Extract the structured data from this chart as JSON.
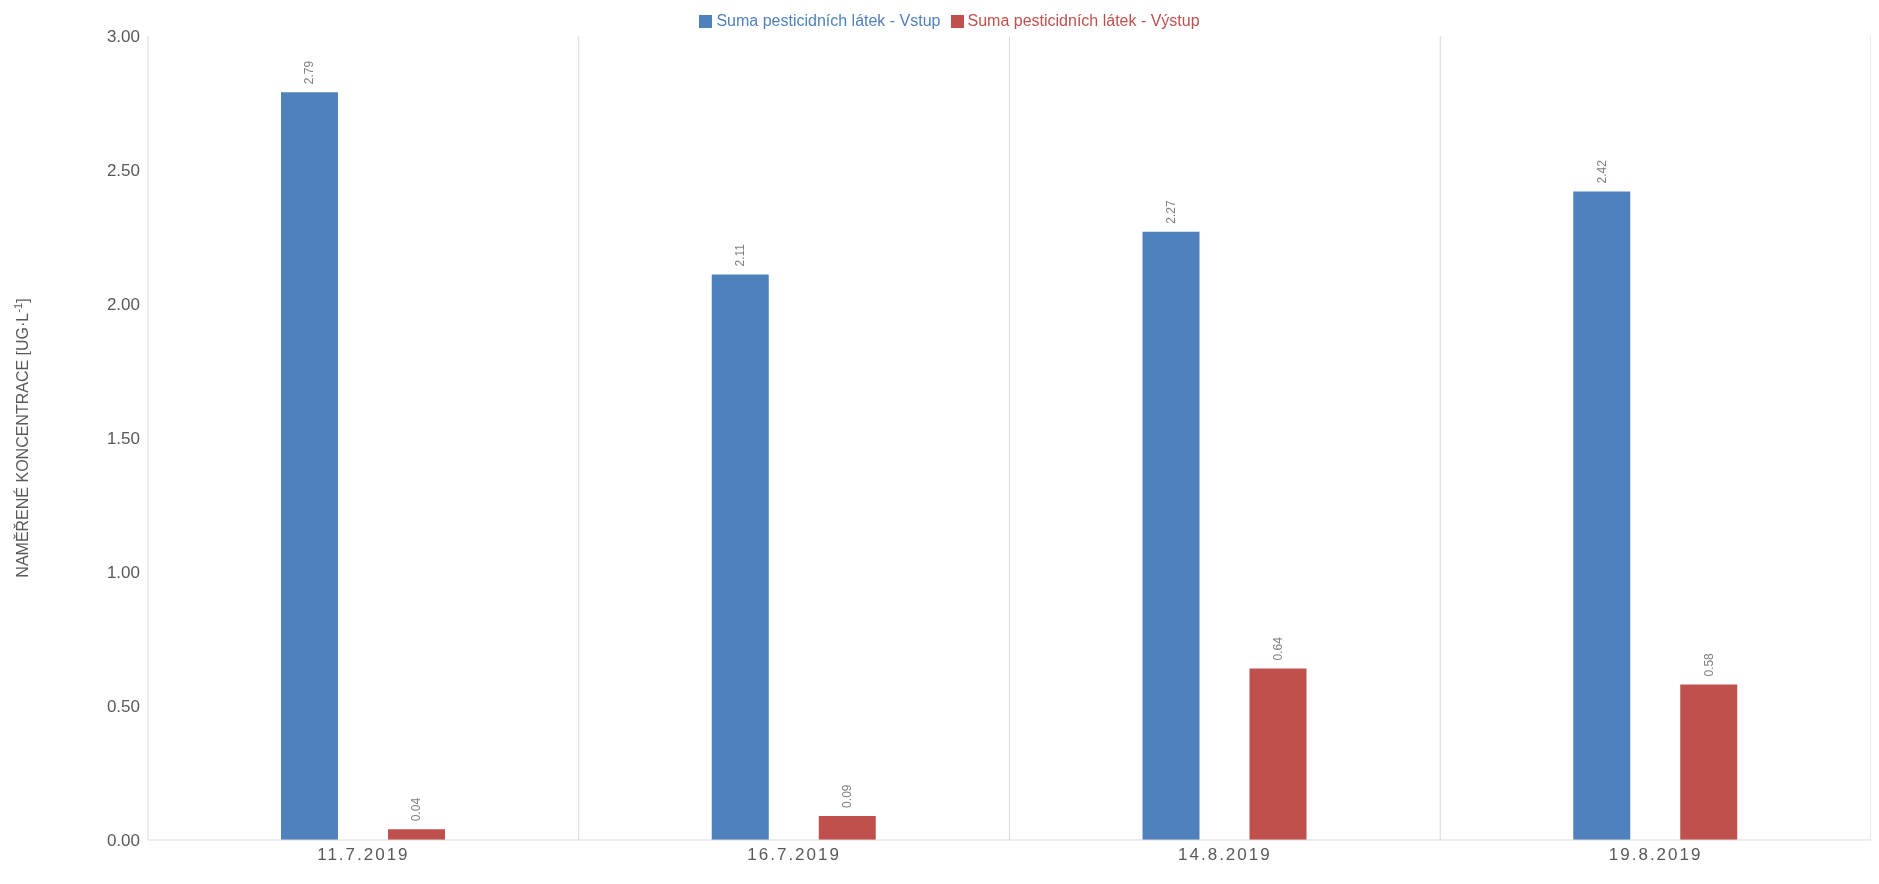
{
  "chart_data": {
    "type": "bar",
    "ylabel": "NAMĚŘENÉ KONCENTRACE [UG·L$^{-1}$]",
    "categories": [
      "11.7.2019",
      "16.7.2019",
      "14.8.2019",
      "19.8.2019"
    ],
    "series": [
      {
        "name": "Suma pesticidních látek - Vstup",
        "color": "#4f81bd",
        "values": [
          2.79,
          2.11,
          2.27,
          2.42
        ]
      },
      {
        "name": "Suma pesticidních látek - Výstup",
        "color": "#c0504d",
        "values": [
          0.04,
          0.09,
          0.64,
          0.58
        ]
      }
    ],
    "ylim": [
      0,
      3
    ],
    "yticks": [
      {
        "value": 0,
        "label": "0.00"
      },
      {
        "value": 0.5,
        "label": "0.50"
      },
      {
        "value": 1,
        "label": "1.00"
      },
      {
        "value": 1.5,
        "label": "1.50"
      },
      {
        "value": 2,
        "label": "2.00"
      },
      {
        "value": 2.5,
        "label": "2.50"
      },
      {
        "value": 3,
        "label": "3.00"
      }
    ],
    "data_labels": true,
    "grid": "x",
    "legend": "top"
  }
}
